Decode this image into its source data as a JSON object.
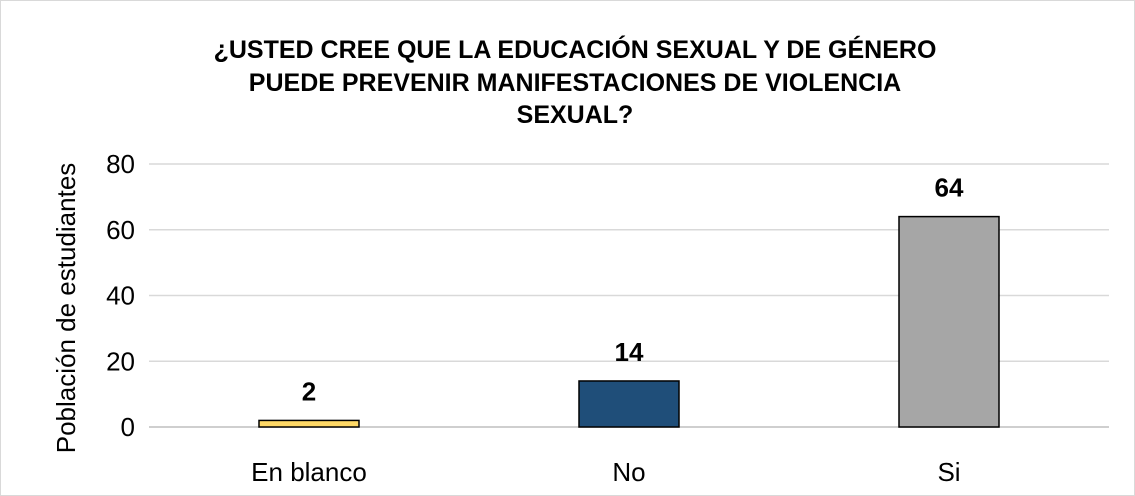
{
  "chart_data": {
    "type": "bar",
    "title_lines": [
      "¿USTED CREE QUE LA EDUCACIÓN SEXUAL Y DE GÉNERO",
      "PUEDE PREVENIR MANIFESTACIONES DE VIOLENCIA",
      "SEXUAL?"
    ],
    "ylabel": "Población de estudiantes",
    "xlabel": "",
    "categories": [
      "En blanco",
      "No",
      "Si"
    ],
    "values": [
      2,
      14,
      64
    ],
    "data_labels": [
      "2",
      "14",
      "64"
    ],
    "ylim": [
      0,
      80
    ],
    "yticks": [
      0,
      20,
      40,
      60,
      80
    ],
    "grid": true,
    "legend": "none",
    "colors": [
      "#ffd966",
      "#1f4e79",
      "#a6a6a6"
    ],
    "bar_outline_color": "#000000",
    "gridline_color": "#d9d9d9"
  }
}
